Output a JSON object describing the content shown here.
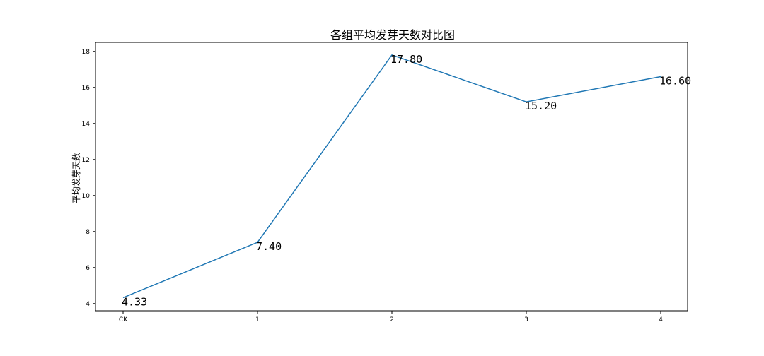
{
  "chart_data": {
    "type": "line",
    "title": "各组平均发芽天数对比图",
    "xlabel": "",
    "ylabel": "平均发芽天数",
    "categories": [
      "CK",
      "1",
      "2",
      "3",
      "4"
    ],
    "series": [
      {
        "values": [
          4.33,
          7.4,
          17.8,
          15.2,
          16.6
        ],
        "color": "#1f77b4"
      }
    ],
    "data_labels": [
      "4.33",
      "7.40",
      "17.80",
      "15.20",
      "16.60"
    ],
    "y_ticks": [
      4,
      6,
      8,
      10,
      12,
      14,
      16,
      18
    ],
    "ylim": [
      3.6,
      18.5
    ],
    "grid": false,
    "legend": "none"
  }
}
